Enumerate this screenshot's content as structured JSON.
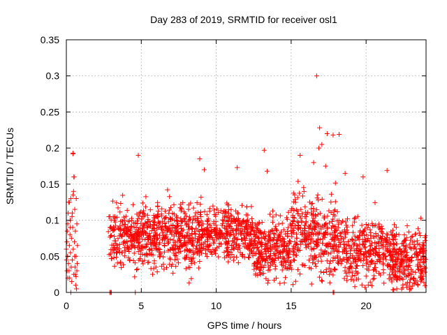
{
  "chart_data": {
    "type": "scatter",
    "title": "Day 283 of 2019, SRMTID for receiver osl1",
    "xlabel": "GPS time / hours",
    "ylabel": "SRMTID / TECUs",
    "xlim": [
      0,
      24
    ],
    "ylim": [
      0,
      0.35
    ],
    "xticks": [
      0,
      5,
      10,
      15,
      20
    ],
    "yticks": [
      0,
      0.05,
      0.1,
      0.15,
      0.2,
      0.25,
      0.3,
      0.35
    ],
    "ytick_labels": [
      "0",
      "0.05",
      "0.1",
      "0.15",
      "0.2",
      "0.25",
      "0.3",
      "0.35"
    ],
    "grid": true,
    "marker": "+",
    "color": "#ff0000",
    "series": [
      {
        "values": [
          [
            0.0,
            0.06
          ],
          [
            0.02,
            0.045
          ],
          [
            0.04,
            0.07
          ],
          [
            0.06,
            0.085
          ],
          [
            0.08,
            0.05
          ],
          [
            0.1,
            0.095
          ],
          [
            0.12,
            0.11
          ],
          [
            0.14,
            0.04
          ],
          [
            0.16,
            0.125
          ],
          [
            0.18,
            0.03
          ],
          [
            0.2,
            0.065
          ],
          [
            0.22,
            0.02
          ],
          [
            0.24,
            0.08
          ],
          [
            0.26,
            0.1
          ],
          [
            0.28,
            0.055
          ],
          [
            0.3,
            0.13
          ],
          [
            0.32,
            0.035
          ],
          [
            0.34,
            0.075
          ],
          [
            0.36,
            0.015
          ],
          [
            0.38,
            0.105
          ],
          [
            0.4,
            0.045
          ],
          [
            0.42,
            0.09
          ],
          [
            0.44,
            0.192
          ],
          [
            0.46,
            0.06
          ],
          [
            0.48,
            0.14
          ],
          [
            0.5,
            0.025
          ],
          [
            0.52,
            0.16
          ],
          [
            0.54,
            0.07
          ],
          [
            0.56,
            0.115
          ],
          [
            0.58,
            0.035
          ],
          [
            0.6,
            0.085
          ],
          [
            0.62,
            0.01
          ],
          [
            0.64,
            0.05
          ],
          [
            0.66,
            0.13
          ],
          [
            0.68,
            0.005
          ],
          [
            0.7,
            0.095
          ],
          [
            0.72,
            0.04
          ],
          [
            0.74,
            0.065
          ],
          [
            0.1,
            0.02
          ],
          [
            0.3,
            0.0
          ],
          [
            0.5,
            0.16
          ],
          [
            0.6,
            0.025
          ],
          [
            0.7,
            0.03
          ],
          [
            0.2,
            0.125
          ],
          [
            0.4,
            0.11
          ],
          [
            0.05,
            0.03
          ],
          [
            0.25,
            0.09
          ],
          [
            0.45,
            0.135
          ],
          [
            0.55,
            0.05
          ],
          [
            0.65,
            0.022
          ],
          [
            2.9,
            0.0
          ],
          [
            2.95,
            0.0
          ],
          [
            3.0,
            0.0
          ],
          [
            17.8,
            0.0
          ],
          [
            17.85,
            0.0
          ],
          [
            4.6,
            0.0
          ],
          [
            16.7,
            0.3
          ],
          [
            16.9,
            0.228
          ],
          [
            17.4,
            0.22
          ],
          [
            17.8,
            0.218
          ],
          [
            18.2,
            0.219
          ],
          [
            13.2,
            0.197
          ],
          [
            15.6,
            0.19
          ],
          [
            16.85,
            0.2
          ],
          [
            17.05,
            0.205
          ],
          [
            4.8,
            0.19
          ],
          [
            0.45,
            0.193
          ],
          [
            8.9,
            0.185
          ],
          [
            16.5,
            0.18
          ],
          [
            17.3,
            0.175
          ],
          [
            9.2,
            0.17
          ],
          [
            11.4,
            0.173
          ],
          [
            13.4,
            0.168
          ],
          [
            21.4,
            0.169
          ],
          [
            18.6,
            0.165
          ],
          [
            19.8,
            0.16
          ]
        ],
        "clusters": [
          {
            "x_start": 2.8,
            "x_end": 6.0,
            "count": 330,
            "center": 0.075,
            "spread": 0.035
          },
          {
            "x_start": 6.0,
            "x_end": 9.0,
            "count": 330,
            "center": 0.08,
            "spread": 0.035
          },
          {
            "x_start": 9.0,
            "x_end": 12.5,
            "count": 360,
            "center": 0.08,
            "spread": 0.03
          },
          {
            "x_start": 12.5,
            "x_end": 15.0,
            "count": 280,
            "center": 0.06,
            "spread": 0.035
          },
          {
            "x_start": 15.0,
            "x_end": 18.0,
            "count": 320,
            "center": 0.08,
            "spread": 0.045
          },
          {
            "x_start": 18.0,
            "x_end": 21.5,
            "count": 330,
            "center": 0.06,
            "spread": 0.035
          },
          {
            "x_start": 21.5,
            "x_end": 24.0,
            "count": 290,
            "center": 0.045,
            "spread": 0.035
          }
        ]
      }
    ]
  }
}
